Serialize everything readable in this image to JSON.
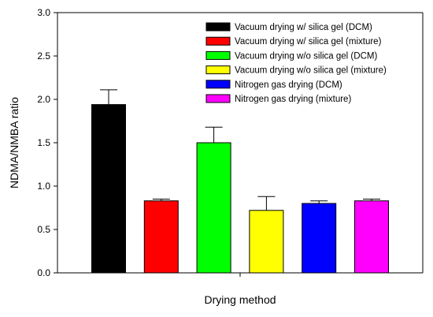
{
  "chart_data": {
    "type": "bar",
    "title": "",
    "xlabel": "Drying method",
    "ylabel": "NDMA/NMBA ratio",
    "ylim": [
      0,
      3.0
    ],
    "yticks": [
      "0.0",
      "0.5",
      "1.0",
      "1.5",
      "2.0",
      "2.5",
      "3.0"
    ],
    "grid": false,
    "legend_position": "top-right",
    "series": [
      {
        "name": "Vacuum drying w/ silica gel (DCM)",
        "value": 1.94,
        "error": 0.17,
        "color": "#000000"
      },
      {
        "name": "Vacuum drying w/ silica gel (mixture)",
        "value": 0.83,
        "error": 0.02,
        "color": "#ff0000"
      },
      {
        "name": "Vacuum drying w/o silica gel (DCM)",
        "value": 1.5,
        "error": 0.18,
        "color": "#00ff00"
      },
      {
        "name": "Vacuum drying w/o silica gel (mixture)",
        "value": 0.72,
        "error": 0.16,
        "color": "#ffff00"
      },
      {
        "name": "Nitrogen gas drying (DCM)",
        "value": 0.8,
        "error": 0.03,
        "color": "#0000ff"
      },
      {
        "name": "Nitrogen gas drying (mixture)",
        "value": 0.83,
        "error": 0.02,
        "color": "#ff00ff"
      }
    ]
  }
}
